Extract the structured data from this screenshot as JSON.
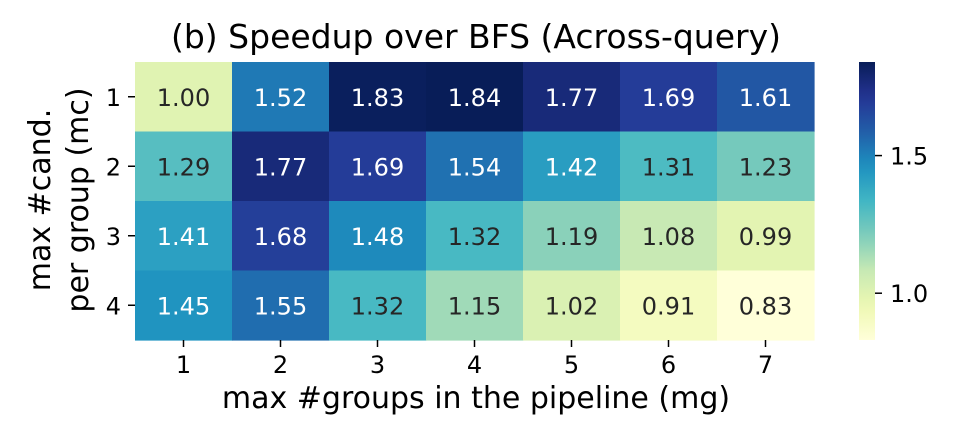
{
  "chart_data": {
    "type": "heatmap",
    "title": "(b) Speedup over BFS (Across-query)",
    "xlabel": "max #groups in the pipeline (mg)",
    "ylabel_lines": [
      "max #cand.",
      "per group (mc)"
    ],
    "x_categories": [
      "1",
      "2",
      "3",
      "4",
      "5",
      "6",
      "7"
    ],
    "y_categories": [
      "1",
      "2",
      "3",
      "4"
    ],
    "values": [
      [
        1.0,
        1.52,
        1.83,
        1.84,
        1.77,
        1.69,
        1.61
      ],
      [
        1.29,
        1.77,
        1.69,
        1.54,
        1.42,
        1.31,
        1.23
      ],
      [
        1.41,
        1.68,
        1.48,
        1.32,
        1.19,
        1.08,
        0.99
      ],
      [
        1.45,
        1.55,
        1.32,
        1.15,
        1.02,
        0.91,
        0.83
      ]
    ],
    "value_labels": [
      [
        "1.00",
        "1.52",
        "1.83",
        "1.84",
        "1.77",
        "1.69",
        "1.61"
      ],
      [
        "1.29",
        "1.77",
        "1.69",
        "1.54",
        "1.42",
        "1.31",
        "1.23"
      ],
      [
        "1.41",
        "1.68",
        "1.48",
        "1.32",
        "1.19",
        "1.08",
        "0.99"
      ],
      [
        "1.45",
        "1.55",
        "1.32",
        "1.15",
        "1.02",
        "0.91",
        "0.83"
      ]
    ],
    "colorbar": {
      "colormap": "YlGnBu",
      "min": 0.83,
      "max": 1.84,
      "ticks": [
        1.0,
        1.5
      ],
      "tick_labels": [
        "1.0",
        "1.5"
      ]
    },
    "grid": false,
    "legend": "colorbar-right"
  }
}
